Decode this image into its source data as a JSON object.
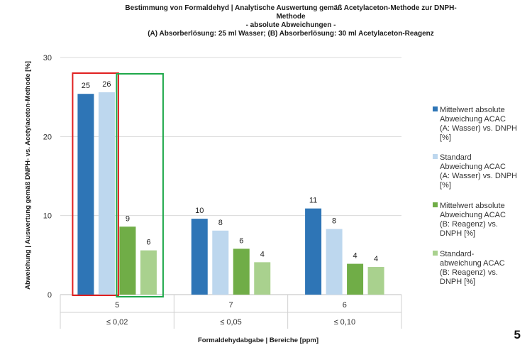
{
  "chart_data": {
    "type": "bar",
    "title_lines": [
      "Bestimmung von Formaldehyd | Analytische Auswertung gemäß Acetylaceton-Methode zur DNPH-",
      "Methode",
      "- absolute Abweichungen -",
      "(A) Absorberlösung: 25 ml Wasser; (B) Absorberlösung: 30 ml Acetylaceton-Reagenz"
    ],
    "xlabel": "Formaldehydabgabe | Bereiche [ppm]",
    "ylabel": "Abweichung | Auswertung gemäß DNPH- vs. Acetylaceton-Methode [%]",
    "ylim": [
      0,
      30
    ],
    "yticks": [
      0,
      10,
      20,
      30
    ],
    "grid": true,
    "legend_position": "right",
    "categories": [
      {
        "count": "5",
        "range": "≤ 0,02"
      },
      {
        "count": "7",
        "range": "≤ 0,05"
      },
      {
        "count": "6",
        "range": "≤ 0,10"
      }
    ],
    "series": [
      {
        "name": [
          "Mittelwert absolute",
          "Abweichung ACAC",
          "(A: Wasser) vs. DNPH",
          "[%]"
        ],
        "color": "#2e75b6",
        "values": [
          25.4,
          9.6,
          10.9
        ],
        "labels": [
          "25",
          "10",
          "11"
        ]
      },
      {
        "name": [
          "Standard",
          "Abweichung ACAC",
          "(A: Wasser) vs. DNPH",
          "[%]"
        ],
        "color": "#bdd7ee",
        "values": [
          25.6,
          8.1,
          8.3
        ],
        "labels": [
          "26",
          "8",
          "8"
        ]
      },
      {
        "name": [
          "Mittelwert absolute",
          "Abweichung ACAC",
          "(B: Reagenz) vs.",
          "DNPH [%]"
        ],
        "color": "#70ad47",
        "values": [
          8.6,
          5.8,
          3.9
        ],
        "labels": [
          "9",
          "6",
          "4"
        ]
      },
      {
        "name": [
          "Standard-",
          "abweichung ACAC",
          "(B: Reagenz) vs.",
          "DNPH [%]"
        ],
        "color": "#a9d18e",
        "values": [
          5.6,
          4.1,
          3.5
        ],
        "labels": [
          "6",
          "4",
          "4"
        ]
      }
    ],
    "annotations": {
      "highlight_a_color": "#e02020",
      "highlight_b_color": "#1ea84a"
    }
  },
  "page_number": "5"
}
